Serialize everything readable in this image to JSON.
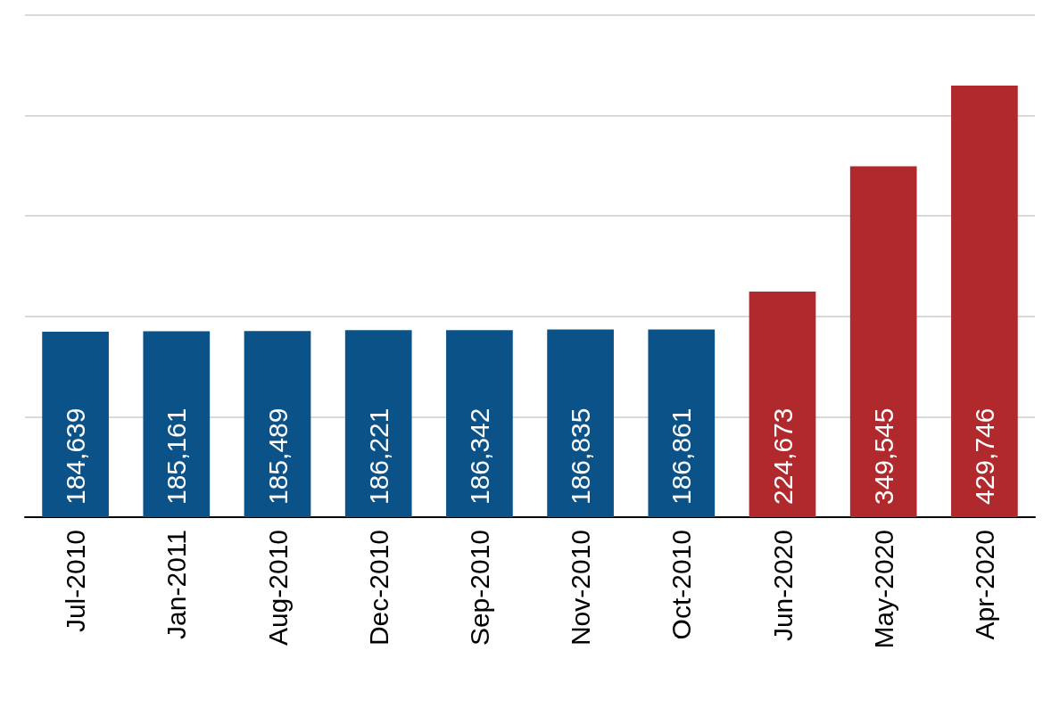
{
  "chart_data": {
    "type": "bar",
    "categories": [
      "Jul-2010",
      "Jan-2011",
      "Aug-2010",
      "Dec-2010",
      "Sep-2010",
      "Nov-2010",
      "Oct-2010",
      "Jun-2020",
      "May-2020",
      "Apr-2020"
    ],
    "values": [
      184639,
      185161,
      185489,
      186221,
      186342,
      186835,
      186861,
      224673,
      349545,
      429746
    ],
    "value_labels": [
      "184,639",
      "185,161",
      "185,489",
      "186,221",
      "186,342",
      "186,835",
      "186,861",
      "224,673",
      "349,545",
      "429,746"
    ],
    "colors": [
      "#0b5289",
      "#0b5289",
      "#0b5289",
      "#0b5289",
      "#0b5289",
      "#0b5289",
      "#0b5289",
      "#b0292d",
      "#b0292d",
      "#b0292d"
    ],
    "grid": "y",
    "tick_labels": "x"
  }
}
